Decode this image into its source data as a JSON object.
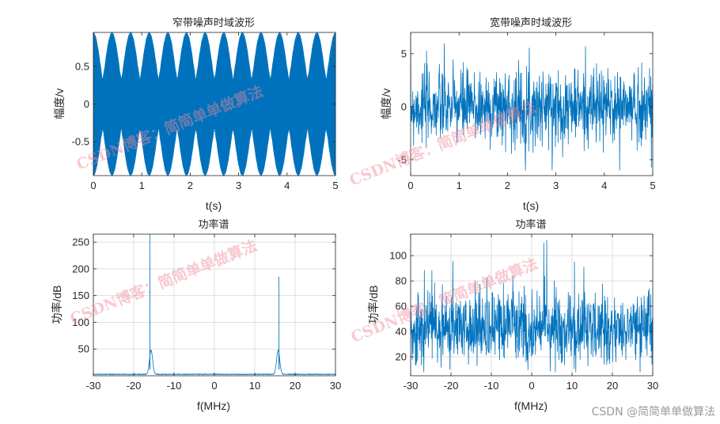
{
  "colors": {
    "line": "#0072BD",
    "axis": "#262626",
    "grid": "#dfdfdf",
    "watermark": "#f08a9a"
  },
  "watermark": {
    "text_1": "CSDN博客：简简单单做算法",
    "text_2": "CSDN博客：简简单单做算法",
    "text_3": "CSDN博客：简简单单做算法",
    "text_4": "CSDN博客：简简单单做算法"
  },
  "credit": "CSDN @简简单单做算法",
  "chart_data": [
    {
      "id": "narrowband_time",
      "type": "line",
      "title": "窄带噪声时域波形",
      "xlabel": "t(s)",
      "ylabel": "幅度/v",
      "xlim": [
        0,
        5
      ],
      "ylim": [
        -0.95,
        0.95
      ],
      "xticks": [
        0,
        1,
        2,
        3,
        4,
        5
      ],
      "yticks": [
        -0.5,
        0,
        0.5
      ],
      "grid": false,
      "carrier_cycles_per_s": 16,
      "beat_lobes_per_s": 2.6,
      "peak_envelope": 0.95,
      "min_envelope": 0.6
    },
    {
      "id": "wideband_time",
      "type": "line",
      "title": "宽带噪声时域波形",
      "xlabel": "t(s)",
      "ylabel": "幅度/v",
      "xlim": [
        0,
        5
      ],
      "ylim": [
        -6.5,
        7
      ],
      "xticks": [
        0,
        1,
        2,
        3,
        4,
        5
      ],
      "yticks": [
        -5,
        0,
        5
      ],
      "grid": false,
      "std": 1.8,
      "max": 6.5,
      "min": -6
    },
    {
      "id": "narrowband_psd",
      "type": "line",
      "title": "功率谱",
      "xlabel": "f(MHz)",
      "ylabel": "功率/dB",
      "xlim": [
        -30,
        30
      ],
      "ylim": [
        0,
        265
      ],
      "xticks": [
        -30,
        -20,
        -10,
        0,
        10,
        20,
        30
      ],
      "yticks": [
        50,
        100,
        150,
        200,
        250
      ],
      "grid": true,
      "peaks": [
        {
          "f": -16,
          "value": 265
        },
        {
          "f": 16,
          "value": 185
        }
      ],
      "secondary_peaks": [
        {
          "f": -15.7,
          "value": 45
        },
        {
          "f": 15.8,
          "value": 45
        }
      ],
      "floor": 2
    },
    {
      "id": "wideband_psd",
      "type": "line",
      "title": "功率谱",
      "xlabel": "f(MHz)",
      "ylabel": "功率/dB",
      "xlim": [
        -30,
        30
      ],
      "ylim": [
        5,
        117
      ],
      "xticks": [
        -30,
        -20,
        -10,
        0,
        10,
        20,
        30
      ],
      "yticks": [
        20,
        40,
        60,
        80,
        100
      ],
      "grid": true,
      "mean": 42,
      "spread": 18,
      "max": 117,
      "min": 8
    }
  ]
}
